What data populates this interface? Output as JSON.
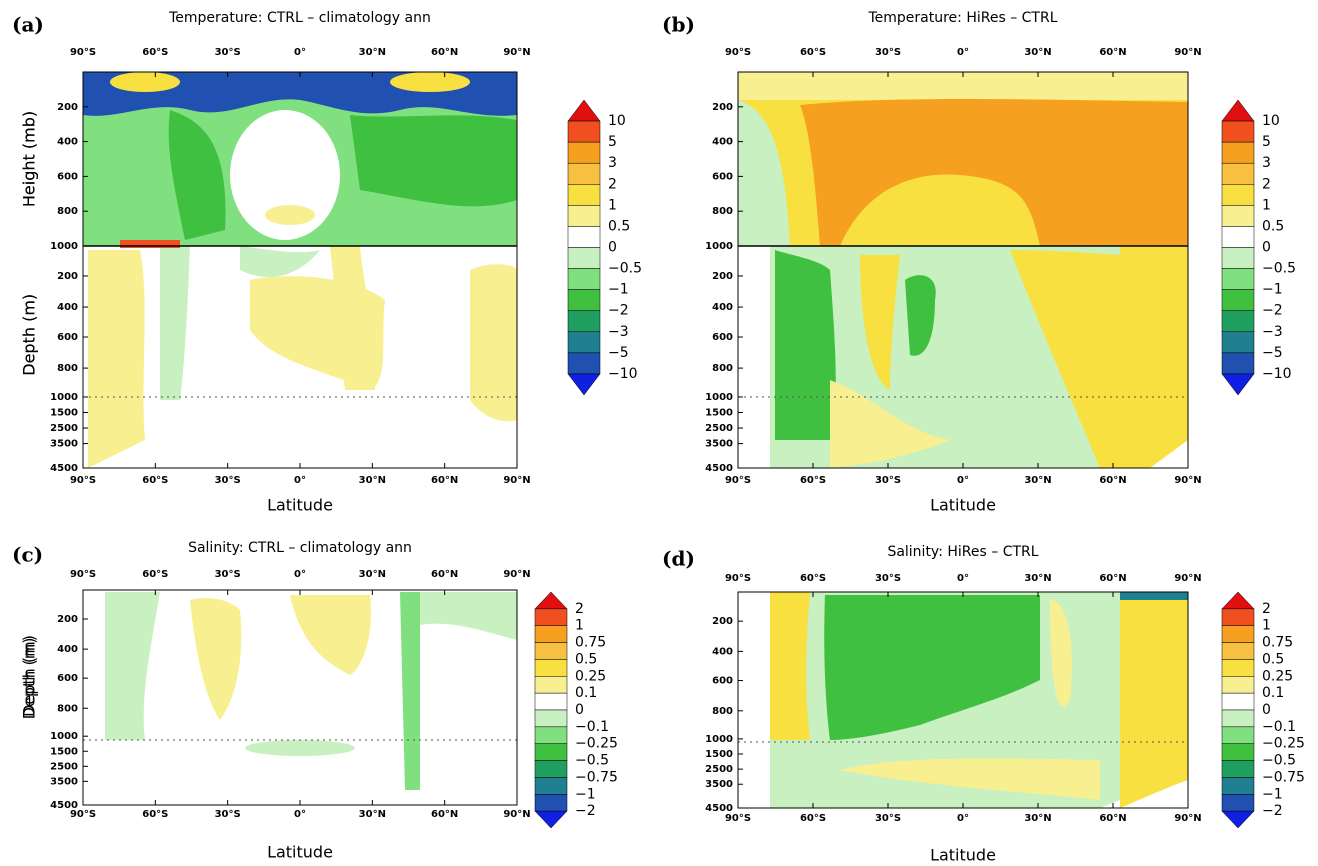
{
  "latitude_ticks": [
    "90°S",
    "60°S",
    "30°S",
    "0°",
    "30°N",
    "60°N",
    "90°N"
  ],
  "panels": [
    {
      "label": "(a)",
      "title": "Temperature: CTRL – climatology ann",
      "upper_label": "Height (mb)",
      "lower_label": "Depth (m)",
      "x_label": "Latitude",
      "upper_ticks": [
        "200",
        "400",
        "600",
        "800",
        "1000"
      ],
      "lower_ticks": [
        "200",
        "400",
        "600",
        "800",
        "1000",
        "1500",
        "2500",
        "3500",
        "4500"
      ],
      "colorbar": [
        "10",
        "5",
        "3",
        "2",
        "1",
        "0.5",
        "0",
        "−0.5",
        "−1",
        "−2",
        "−3",
        "−5",
        "−10"
      ]
    },
    {
      "label": "(b)",
      "title": "Temperature: HiRes – CTRL",
      "upper_label": "Height (mb)",
      "lower_label": "Depth (m)",
      "x_label": "Latitude",
      "upper_ticks": [
        "200",
        "400",
        "600",
        "800",
        "1000"
      ],
      "lower_ticks": [
        "200",
        "400",
        "600",
        "800",
        "1000",
        "1500",
        "2500",
        "3500",
        "4500"
      ],
      "colorbar": [
        "10",
        "5",
        "3",
        "2",
        "1",
        "0.5",
        "0",
        "−0.5",
        "−1",
        "−2",
        "−3",
        "−5",
        "−10"
      ]
    },
    {
      "label": "(c)",
      "title": "Salinity: CTRL – climatology ann",
      "lower_label": "Depth (m)",
      "x_label": "Latitude",
      "lower_ticks": [
        "200",
        "400",
        "600",
        "800",
        "1000",
        "1500",
        "2500",
        "3500",
        "4500"
      ],
      "colorbar": [
        "2",
        "1",
        "0.75",
        "0.5",
        "0.25",
        "0.1",
        "0",
        "−0.1",
        "−0.25",
        "−0.5",
        "−0.75",
        "−1",
        "−2"
      ]
    },
    {
      "label": "(d)",
      "title": "Salinity: HiRes – CTRL",
      "lower_label": "Depth (m)",
      "x_label": "Latitude",
      "lower_ticks": [
        "200",
        "400",
        "600",
        "800",
        "1000",
        "1500",
        "2500",
        "3500",
        "4500"
      ],
      "colorbar": [
        "2",
        "1",
        "0.75",
        "0.5",
        "0.25",
        "0.1",
        "0",
        "−0.1",
        "−0.25",
        "−0.5",
        "−0.75",
        "−1",
        "−2"
      ]
    }
  ]
}
